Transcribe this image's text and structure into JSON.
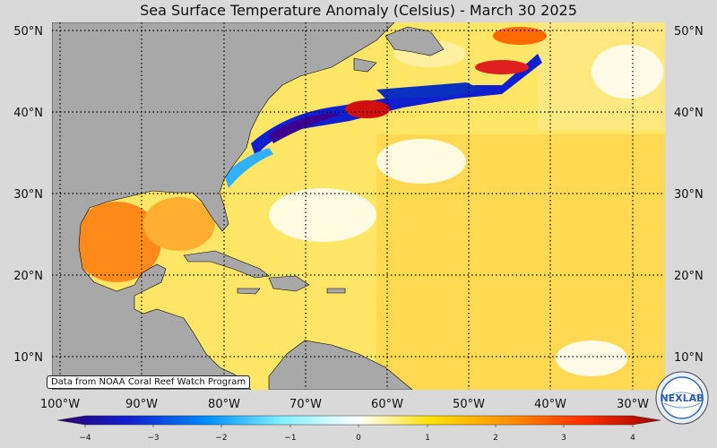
{
  "map": {
    "title": "Sea Surface Temperature Anomaly (Celsius) - March 30 2025",
    "credit": "Data from NOAA Coral Reef Watch Program",
    "lat_labels": [
      "50°N",
      "40°N",
      "30°N",
      "20°N",
      "10°N"
    ],
    "lon_labels": [
      "100°W",
      "90°W",
      "80°W",
      "70°W",
      "60°W",
      "50°W",
      "40°W",
      "30°W"
    ],
    "colorbar": {
      "ticks": [
        "−4",
        "−3",
        "−2",
        "−1",
        "0",
        "1",
        "2",
        "3",
        "4"
      ],
      "colors": [
        "#2b0070",
        "#1020d0",
        "#0090ff",
        "#80f0ff",
        "#ffffff",
        "#ffe000",
        "#ff9000",
        "#ff3000",
        "#a00000"
      ]
    },
    "logo_text": "NEXLAB",
    "land_color": "#a8a8a8"
  }
}
